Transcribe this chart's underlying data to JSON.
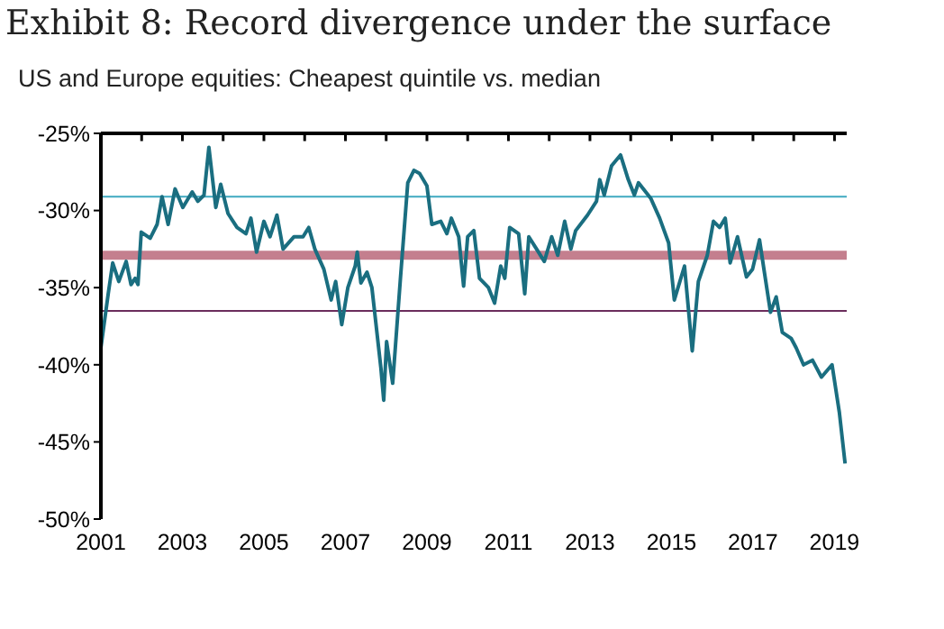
{
  "chart_data": {
    "type": "line",
    "title": "Exhibit 8: Record divergence under the surface",
    "subtitle": "US and Europe equities: Cheapest quintile vs. median",
    "x": [
      2001.0,
      2001.18,
      2001.29,
      2001.44,
      2001.62,
      2001.74,
      2001.84,
      2001.91,
      2001.99,
      2002.21,
      2002.38,
      2002.5,
      2002.65,
      2002.82,
      2003.01,
      2003.24,
      2003.38,
      2003.53,
      2003.65,
      2003.82,
      2003.94,
      2004.12,
      2004.34,
      2004.56,
      2004.68,
      2004.82,
      2005.0,
      2005.15,
      2005.32,
      2005.47,
      2005.74,
      2005.96,
      2006.1,
      2006.25,
      2006.47,
      2006.65,
      2006.76,
      2006.91,
      2007.06,
      2007.24,
      2007.29,
      2007.38,
      2007.53,
      2007.65,
      2007.87,
      2007.94,
      2008.01,
      2008.16,
      2008.35,
      2008.53,
      2008.68,
      2008.82,
      2009.0,
      2009.12,
      2009.34,
      2009.49,
      2009.6,
      2009.78,
      2009.9,
      2010.0,
      2010.15,
      2010.29,
      2010.51,
      2010.66,
      2010.81,
      2010.91,
      2011.03,
      2011.25,
      2011.4,
      2011.5,
      2011.69,
      2011.88,
      2012.06,
      2012.21,
      2012.38,
      2012.53,
      2012.65,
      2012.94,
      2013.16,
      2013.24,
      2013.35,
      2013.53,
      2013.75,
      2013.94,
      2014.09,
      2014.19,
      2014.49,
      2014.71,
      2014.93,
      2015.07,
      2015.32,
      2015.51,
      2015.66,
      2015.88,
      2016.03,
      2016.18,
      2016.32,
      2016.44,
      2016.62,
      2016.84,
      2016.99,
      2017.16,
      2017.28,
      2017.43,
      2017.57,
      2017.72,
      2017.94,
      2018.06,
      2018.24,
      2018.46,
      2018.68,
      2018.94,
      2019.12,
      2019.26
    ],
    "series": [
      {
        "color": "#1a6e80",
        "values": [
          -38.9,
          -35.4,
          -33.4,
          -34.6,
          -33.3,
          -34.8,
          -34.4,
          -34.8,
          -31.4,
          -31.8,
          -30.9,
          -29.1,
          -30.9,
          -28.6,
          -29.8,
          -28.8,
          -29.4,
          -29.0,
          -25.9,
          -29.8,
          -28.3,
          -30.2,
          -31.1,
          -31.5,
          -30.5,
          -32.7,
          -30.7,
          -31.7,
          -30.3,
          -32.5,
          -31.7,
          -31.7,
          -31.1,
          -32.5,
          -33.8,
          -35.8,
          -34.6,
          -37.4,
          -35.0,
          -33.6,
          -32.7,
          -34.7,
          -34.0,
          -35.0,
          -40.2,
          -42.3,
          -38.5,
          -41.2,
          -34.4,
          -28.2,
          -27.4,
          -27.6,
          -28.4,
          -30.9,
          -30.7,
          -31.5,
          -30.5,
          -31.7,
          -34.9,
          -31.7,
          -31.3,
          -34.4,
          -35.0,
          -36.0,
          -33.6,
          -34.4,
          -31.1,
          -31.5,
          -35.4,
          -31.7,
          -32.5,
          -33.3,
          -31.7,
          -32.9,
          -30.7,
          -32.5,
          -31.3,
          -30.3,
          -29.4,
          -28.0,
          -29.0,
          -27.1,
          -26.4,
          -28.0,
          -29.0,
          -28.2,
          -29.2,
          -30.5,
          -32.1,
          -35.8,
          -33.6,
          -39.1,
          -34.6,
          -32.9,
          -30.7,
          -31.1,
          -30.5,
          -33.4,
          -31.7,
          -34.3,
          -33.8,
          -31.9,
          -34.0,
          -36.6,
          -35.6,
          -37.9,
          -38.3,
          -38.9,
          -40.0,
          -39.7,
          -40.8,
          -40.0,
          -43.1,
          -46.4
        ]
      }
    ],
    "ref_lines": [
      {
        "axis": "y",
        "value": -29.1,
        "color": "#3fa9c0"
      },
      {
        "axis": "y",
        "value": -32.9,
        "color": "#c47f8e"
      },
      {
        "axis": "y",
        "value": -36.5,
        "color": "#6b2d5c"
      }
    ],
    "xlim": [
      2001,
      2019.3
    ],
    "xticks": [
      2001,
      {
        "value": 2002,
        "label": null
      },
      2003,
      {
        "value": 2004,
        "label": null
      },
      2005,
      {
        "value": 2006,
        "label": null
      },
      2007,
      {
        "value": 2008,
        "label": null
      },
      2009,
      {
        "value": 2010,
        "label": null
      },
      2011,
      {
        "value": 2012,
        "label": null
      },
      2013,
      {
        "value": 2014,
        "label": null
      },
      2015,
      {
        "value": 2016,
        "label": null
      },
      2017,
      {
        "value": 2018,
        "label": null
      },
      2019
    ],
    "ylim": [
      -50,
      -25
    ],
    "yticks": [
      {
        "value": -50,
        "label": "-50%"
      },
      {
        "value": -45,
        "label": "-45%"
      },
      {
        "value": -40,
        "label": "-40%"
      },
      {
        "value": -35,
        "label": "-35%"
      },
      {
        "value": -30,
        "label": "-30%"
      },
      {
        "value": -25,
        "label": "-25%"
      }
    ],
    "grid": false,
    "legend": false,
    "marker": "none",
    "line_style": "solid"
  }
}
